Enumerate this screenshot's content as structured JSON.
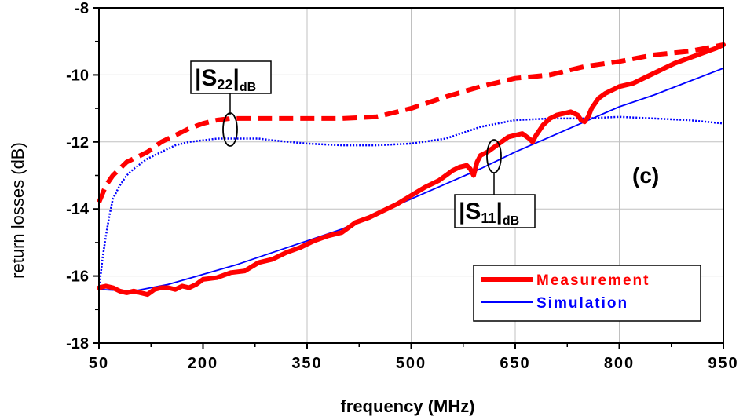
{
  "chart_data": {
    "type": "line",
    "title": "",
    "xlabel": "frequency (MHz)",
    "ylabel": "return losses (dB)",
    "xlim": [
      50,
      950
    ],
    "ylim": [
      -18,
      -8
    ],
    "x_ticks": [
      50,
      200,
      350,
      500,
      650,
      800,
      950
    ],
    "y_ticks": [
      -18,
      -16,
      -14,
      -12,
      -10,
      -8
    ],
    "x_tick_labels": [
      "50",
      "200",
      "350",
      "500",
      "650",
      "800",
      "950"
    ],
    "y_tick_labels": [
      "-18",
      "-16",
      "-14",
      "-12",
      "-10",
      "-8"
    ],
    "grid": true,
    "legend_position": "bottom-right",
    "panel_label": "(c)",
    "annotations": {
      "s22": {
        "main": "|S",
        "sub": "22",
        "tail": "|",
        "unit": "dB"
      },
      "s11": {
        "main": "|S",
        "sub": "11",
        "tail": "|",
        "unit": "dB"
      }
    },
    "series": [
      {
        "name": "Measurement",
        "parameter": "S22",
        "color": "#ff0000",
        "style": "dashed-thick",
        "x": [
          50,
          60,
          70,
          80,
          90,
          100,
          110,
          120,
          140,
          160,
          180,
          200,
          220,
          240,
          260,
          280,
          300,
          350,
          400,
          450,
          500,
          550,
          600,
          650,
          700,
          750,
          800,
          850,
          900,
          950
        ],
        "y": [
          -13.8,
          -13.3,
          -13.0,
          -12.8,
          -12.6,
          -12.5,
          -12.4,
          -12.3,
          -12.0,
          -11.8,
          -11.6,
          -11.45,
          -11.35,
          -11.3,
          -11.3,
          -11.3,
          -11.3,
          -11.3,
          -11.3,
          -11.25,
          -11.0,
          -10.65,
          -10.35,
          -10.1,
          -10.0,
          -9.75,
          -9.6,
          -9.4,
          -9.3,
          -9.1
        ]
      },
      {
        "name": "",
        "parameter": "S22",
        "color": "#0000ff",
        "style": "dotted",
        "x": [
          50,
          55,
          60,
          65,
          70,
          80,
          90,
          100,
          120,
          140,
          160,
          180,
          200,
          220,
          240,
          260,
          280,
          300,
          350,
          400,
          450,
          500,
          550,
          600,
          650,
          700,
          750,
          800,
          850,
          900,
          950
        ],
        "y": [
          -16.4,
          -15.5,
          -14.8,
          -14.2,
          -13.7,
          -13.3,
          -13.0,
          -12.8,
          -12.5,
          -12.3,
          -12.1,
          -12.0,
          -11.95,
          -11.9,
          -11.9,
          -11.9,
          -11.9,
          -11.95,
          -12.05,
          -12.1,
          -12.1,
          -12.05,
          -11.9,
          -11.55,
          -11.35,
          -11.3,
          -11.3,
          -11.25,
          -11.3,
          -11.35,
          -11.45
        ]
      },
      {
        "name": "Measurement",
        "parameter": "S11",
        "color": "#ff0000",
        "style": "solid-thick",
        "x": [
          50,
          60,
          70,
          80,
          90,
          100,
          110,
          120,
          130,
          140,
          150,
          160,
          170,
          180,
          190,
          200,
          220,
          240,
          260,
          280,
          300,
          320,
          340,
          360,
          380,
          400,
          420,
          440,
          460,
          480,
          500,
          520,
          540,
          560,
          570,
          580,
          585,
          590,
          595,
          600,
          610,
          620,
          630,
          640,
          650,
          660,
          670,
          675,
          680,
          685,
          690,
          700,
          710,
          720,
          730,
          740,
          745,
          750,
          755,
          760,
          770,
          780,
          800,
          820,
          840,
          860,
          880,
          900,
          920,
          940,
          950
        ],
        "y": [
          -16.35,
          -16.3,
          -16.35,
          -16.45,
          -16.5,
          -16.45,
          -16.5,
          -16.55,
          -16.4,
          -16.35,
          -16.35,
          -16.4,
          -16.3,
          -16.35,
          -16.25,
          -16.1,
          -16.05,
          -15.9,
          -15.85,
          -15.6,
          -15.5,
          -15.3,
          -15.15,
          -14.95,
          -14.8,
          -14.7,
          -14.4,
          -14.25,
          -14.05,
          -13.85,
          -13.6,
          -13.35,
          -13.15,
          -12.85,
          -12.75,
          -12.7,
          -12.8,
          -13.0,
          -12.6,
          -12.4,
          -12.3,
          -12.15,
          -12.0,
          -11.85,
          -11.8,
          -11.75,
          -11.9,
          -12.0,
          -11.8,
          -11.65,
          -11.5,
          -11.3,
          -11.2,
          -11.15,
          -11.1,
          -11.2,
          -11.35,
          -11.4,
          -11.25,
          -11.0,
          -10.7,
          -10.55,
          -10.35,
          -10.25,
          -10.05,
          -9.85,
          -9.65,
          -9.5,
          -9.35,
          -9.2,
          -9.1
        ]
      },
      {
        "name": "Simulation",
        "parameter": "S11",
        "color": "#0000ff",
        "style": "solid-thin",
        "x": [
          50,
          100,
          150,
          200,
          250,
          300,
          350,
          400,
          450,
          500,
          550,
          600,
          650,
          700,
          750,
          800,
          850,
          900,
          950
        ],
        "y": [
          -16.4,
          -16.45,
          -16.25,
          -15.95,
          -15.65,
          -15.3,
          -14.95,
          -14.6,
          -14.15,
          -13.7,
          -13.25,
          -12.8,
          -12.3,
          -11.85,
          -11.4,
          -10.95,
          -10.6,
          -10.2,
          -9.8
        ]
      }
    ]
  }
}
